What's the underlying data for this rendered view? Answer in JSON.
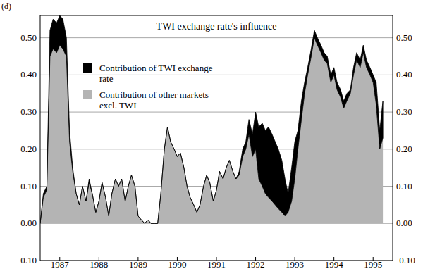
{
  "chart_data": {
    "type": "area",
    "title": "TWI exchange rate's influence",
    "annotations": [
      "(d)"
    ],
    "stacked": true,
    "grid": true,
    "legend": "top-left",
    "xlim": [
      1987,
      1996
    ],
    "ylim": [
      -0.1,
      0.56
    ],
    "xticks": [
      {
        "value": 1987.5,
        "label": "1987"
      },
      {
        "value": 1988.5,
        "label": "1988"
      },
      {
        "value": 1989.5,
        "label": "1989"
      },
      {
        "value": 1990.5,
        "label": "1990"
      },
      {
        "value": 1991.5,
        "label": "1991"
      },
      {
        "value": 1992.5,
        "label": "1992"
      },
      {
        "value": 1993.5,
        "label": "1993"
      },
      {
        "value": 1994.5,
        "label": "1994"
      },
      {
        "value": 1995.5,
        "label": "1995"
      }
    ],
    "yticks": [
      {
        "value": -0.1,
        "label": "-0.10"
      },
      {
        "value": 0,
        "label": "0.00"
      },
      {
        "value": 0.1,
        "label": "0.10"
      },
      {
        "value": 0.2,
        "label": "0.20"
      },
      {
        "value": 0.3,
        "label": "0.30"
      },
      {
        "value": 0.4,
        "label": "0.40"
      },
      {
        "value": 0.5,
        "label": "0.50"
      }
    ],
    "x": [
      1987,
      1987.08,
      1987.17,
      1987.25,
      1987.33,
      1987.42,
      1987.5,
      1987.58,
      1987.67,
      1987.75,
      1987.83,
      1987.92,
      1988,
      1988.08,
      1988.17,
      1988.25,
      1988.33,
      1988.42,
      1988.5,
      1988.58,
      1988.67,
      1988.75,
      1988.83,
      1988.92,
      1989,
      1989.08,
      1989.17,
      1989.25,
      1989.33,
      1989.42,
      1989.5,
      1989.58,
      1989.67,
      1989.75,
      1989.83,
      1989.92,
      1990,
      1990.08,
      1990.17,
      1990.25,
      1990.33,
      1990.42,
      1990.5,
      1990.58,
      1990.67,
      1990.75,
      1990.83,
      1990.92,
      1991,
      1991.08,
      1991.17,
      1991.25,
      1991.33,
      1991.42,
      1991.5,
      1991.58,
      1991.67,
      1991.75,
      1991.83,
      1991.92,
      1992,
      1992.08,
      1992.17,
      1992.25,
      1992.33,
      1992.42,
      1992.5,
      1992.58,
      1992.67,
      1992.75,
      1992.83,
      1992.92,
      1993,
      1993.08,
      1993.17,
      1993.25,
      1993.33,
      1993.42,
      1993.5,
      1993.58,
      1993.67,
      1993.75,
      1993.83,
      1993.92,
      1994,
      1994.08,
      1994.17,
      1994.25,
      1994.33,
      1994.42,
      1994.5,
      1994.58,
      1994.67,
      1994.75,
      1994.83,
      1994.92,
      1995,
      1995.08,
      1995.17,
      1995.25,
      1995.33,
      1995.42,
      1995.5,
      1995.58,
      1995.67,
      1995.75
    ],
    "series": [
      {
        "name": "Contribution of other markets excl. TWI",
        "color": "#b4b4b4",
        "values": [
          0,
          0.07,
          0.09,
          0.45,
          0.47,
          0.46,
          0.48,
          0.47,
          0.45,
          0.22,
          0.14,
          0.08,
          0.05,
          0.1,
          0.06,
          0.11,
          0.08,
          0.03,
          0.06,
          0.11,
          0.07,
          0.02,
          0.08,
          0.12,
          0.1,
          0.12,
          0.06,
          0.1,
          0.13,
          0.1,
          0.02,
          0.01,
          0,
          0.01,
          0,
          0,
          0,
          0.08,
          0.2,
          0.26,
          0.22,
          0.2,
          0.18,
          0.19,
          0.15,
          0.1,
          0.07,
          0.05,
          0.03,
          0.05,
          0.1,
          0.13,
          0.11,
          0.06,
          0.09,
          0.14,
          0.12,
          0.15,
          0.17,
          0.14,
          0.12,
          0.13,
          0.18,
          0.2,
          0.24,
          0.18,
          0.2,
          0.12,
          0.1,
          0.08,
          0.07,
          0.06,
          0.05,
          0.04,
          0.03,
          0.02,
          0.03,
          0.06,
          0.12,
          0.2,
          0.28,
          0.35,
          0.4,
          0.45,
          0.5,
          0.48,
          0.46,
          0.44,
          0.43,
          0.38,
          0.4,
          0.36,
          0.34,
          0.31,
          0.33,
          0.35,
          0.4,
          0.44,
          0.42,
          0.46,
          0.42,
          0.4,
          0.38,
          0.32,
          0.2,
          0.23
        ]
      },
      {
        "name": "Contribution of TWI exchange rate",
        "color": "#000000",
        "values": [
          0,
          0.01,
          0.01,
          0.07,
          0.08,
          0.08,
          0.08,
          0.08,
          0.05,
          0.03,
          0.01,
          0,
          0,
          0,
          0,
          0.01,
          0,
          0,
          0,
          0,
          0,
          0,
          0,
          0,
          0,
          0,
          0,
          0,
          0,
          0,
          0,
          0,
          0,
          0,
          0,
          0,
          0,
          0,
          0,
          0,
          0,
          0,
          0,
          0,
          0,
          0,
          0,
          0,
          0,
          0,
          0,
          0,
          0,
          0,
          0,
          0,
          0,
          0,
          0,
          0,
          0,
          0.01,
          0.02,
          0.02,
          0.04,
          0.06,
          0.1,
          0.14,
          0.17,
          0.17,
          0.19,
          0.18,
          0.17,
          0.16,
          0.14,
          0.1,
          0.05,
          0.09,
          0.1,
          0.05,
          0.05,
          0.03,
          0.02,
          0.02,
          0.02,
          0.02,
          0.02,
          0.02,
          0.02,
          0.02,
          0.02,
          0.02,
          0.02,
          0.02,
          0.02,
          0.01,
          0.02,
          0.02,
          0.02,
          0.02,
          0.02,
          0.02,
          0.02,
          0.06,
          0.05,
          0.1
        ]
      }
    ]
  }
}
